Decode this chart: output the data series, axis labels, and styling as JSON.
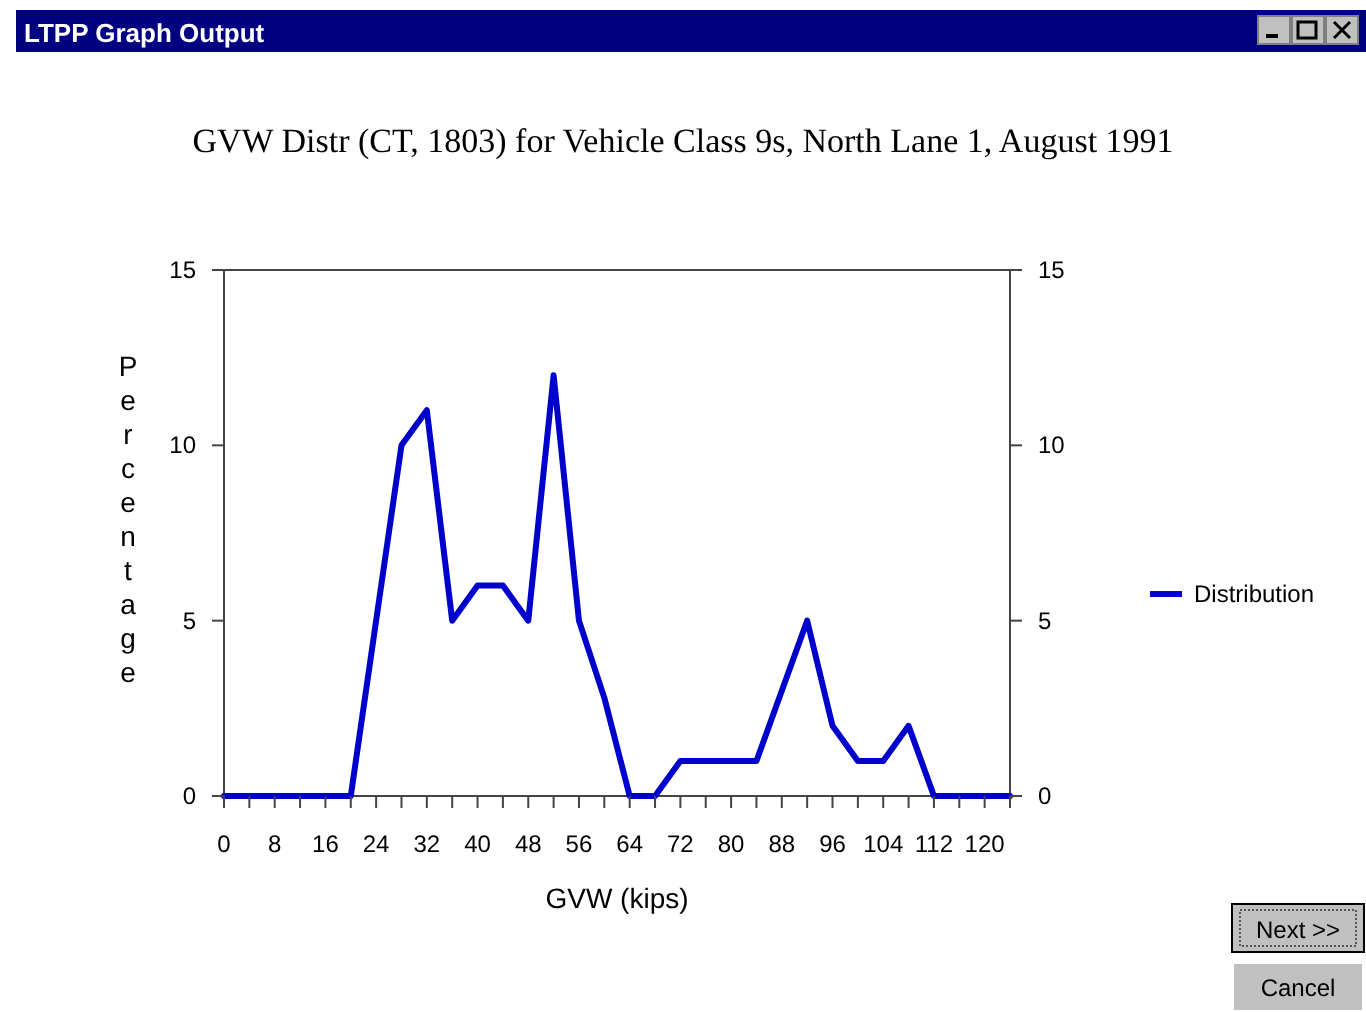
{
  "chart_data": {
    "type": "line",
    "title": "GVW Distr (CT, 1803) for Vehicle Class 9s, North Lane 1, August 1991",
    "xlabel": "GVW (kips)",
    "ylabel": "Percentage",
    "annotations": [
      "LTPP Graph Output",
      "Next >>",
      "Cancel"
    ],
    "x": [
      0,
      4,
      8,
      12,
      16,
      20,
      24,
      28,
      32,
      36,
      40,
      44,
      48,
      52,
      56,
      60,
      64,
      68,
      72,
      76,
      80,
      84,
      88,
      92,
      96,
      100,
      104,
      108,
      112,
      116,
      120,
      124
    ],
    "series": [
      {
        "name": "Distribution",
        "color": "#0000cc",
        "values": [
          0,
          0,
          0,
          0,
          0,
          0,
          5,
          10,
          11,
          5,
          6,
          6,
          5,
          12,
          5,
          2.8,
          0,
          0,
          1,
          1,
          1,
          1,
          3,
          5,
          2,
          1,
          1,
          2,
          0,
          0,
          0,
          0
        ]
      }
    ],
    "xlim": [
      0,
      124
    ],
    "xticks": [
      0,
      {
        "value": 4,
        "label": null
      },
      8,
      {
        "value": 12,
        "label": null
      },
      16,
      {
        "value": 20,
        "label": null
      },
      24,
      {
        "value": 28,
        "label": null
      },
      32,
      {
        "value": 36,
        "label": null
      },
      40,
      {
        "value": 44,
        "label": null
      },
      48,
      {
        "value": 52,
        "label": null
      },
      56,
      {
        "value": 60,
        "label": null
      },
      64,
      {
        "value": 68,
        "label": null
      },
      72,
      {
        "value": 76,
        "label": null
      },
      80,
      {
        "value": 84,
        "label": null
      },
      88,
      {
        "value": 92,
        "label": null
      },
      96,
      {
        "value": 100,
        "label": null
      },
      104,
      {
        "value": 108,
        "label": null
      },
      112,
      {
        "value": 116,
        "label": null
      },
      120,
      {
        "value": 124,
        "label": null
      }
    ],
    "ylim": [
      0,
      15
    ],
    "yticks": [
      0,
      5,
      10,
      15
    ],
    "y2lim": [
      0,
      15
    ],
    "y2ticks": [
      0,
      5,
      10,
      15
    ],
    "grid": false,
    "legend": "right",
    "marker": "none",
    "line_style": "solid"
  }
}
